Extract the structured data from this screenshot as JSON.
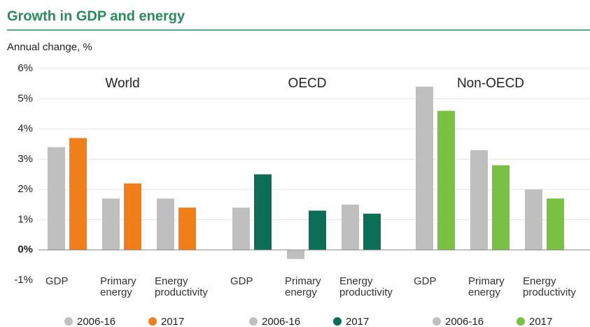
{
  "chart_data": {
    "type": "bar",
    "title": "Growth in GDP and energy",
    "y_label": "Annual change, %",
    "ylim": [
      -1,
      6
    ],
    "yticks": [
      {
        "value": -1,
        "label": "-1%"
      },
      {
        "value": 0,
        "label": "0%"
      },
      {
        "value": 1,
        "label": "1%"
      },
      {
        "value": 2,
        "label": "2%"
      },
      {
        "value": 3,
        "label": "3%"
      },
      {
        "value": 4,
        "label": "4%"
      },
      {
        "value": 5,
        "label": "5%"
      },
      {
        "value": 6,
        "label": "6%"
      }
    ],
    "grid": true,
    "groups": [
      {
        "name": "World",
        "categories": [
          "GDP",
          "Primary energy",
          "Energy productivity"
        ],
        "series": [
          {
            "name": "2006-16",
            "color": "#bfbfbf",
            "values": [
              3.4,
              1.7,
              1.7
            ]
          },
          {
            "name": "2017",
            "color": "#f07f1a",
            "values": [
              3.7,
              2.2,
              1.4
            ]
          }
        ]
      },
      {
        "name": "OECD",
        "categories": [
          "GDP",
          "Primary energy",
          "Energy productivity"
        ],
        "series": [
          {
            "name": "2006-16",
            "color": "#bfbfbf",
            "values": [
              1.4,
              -0.3,
              1.5
            ]
          },
          {
            "name": "2017",
            "color": "#0b6e57",
            "values": [
              2.5,
              1.3,
              1.2
            ]
          }
        ]
      },
      {
        "name": "Non-OECD",
        "categories": [
          "GDP",
          "Primary energy",
          "Energy productivity"
        ],
        "series": [
          {
            "name": "2006-16",
            "color": "#bfbfbf",
            "values": [
              5.4,
              3.3,
              2.0
            ]
          },
          {
            "name": "2017",
            "color": "#7ac143",
            "values": [
              4.6,
              2.8,
              1.7
            ]
          }
        ]
      }
    ]
  }
}
